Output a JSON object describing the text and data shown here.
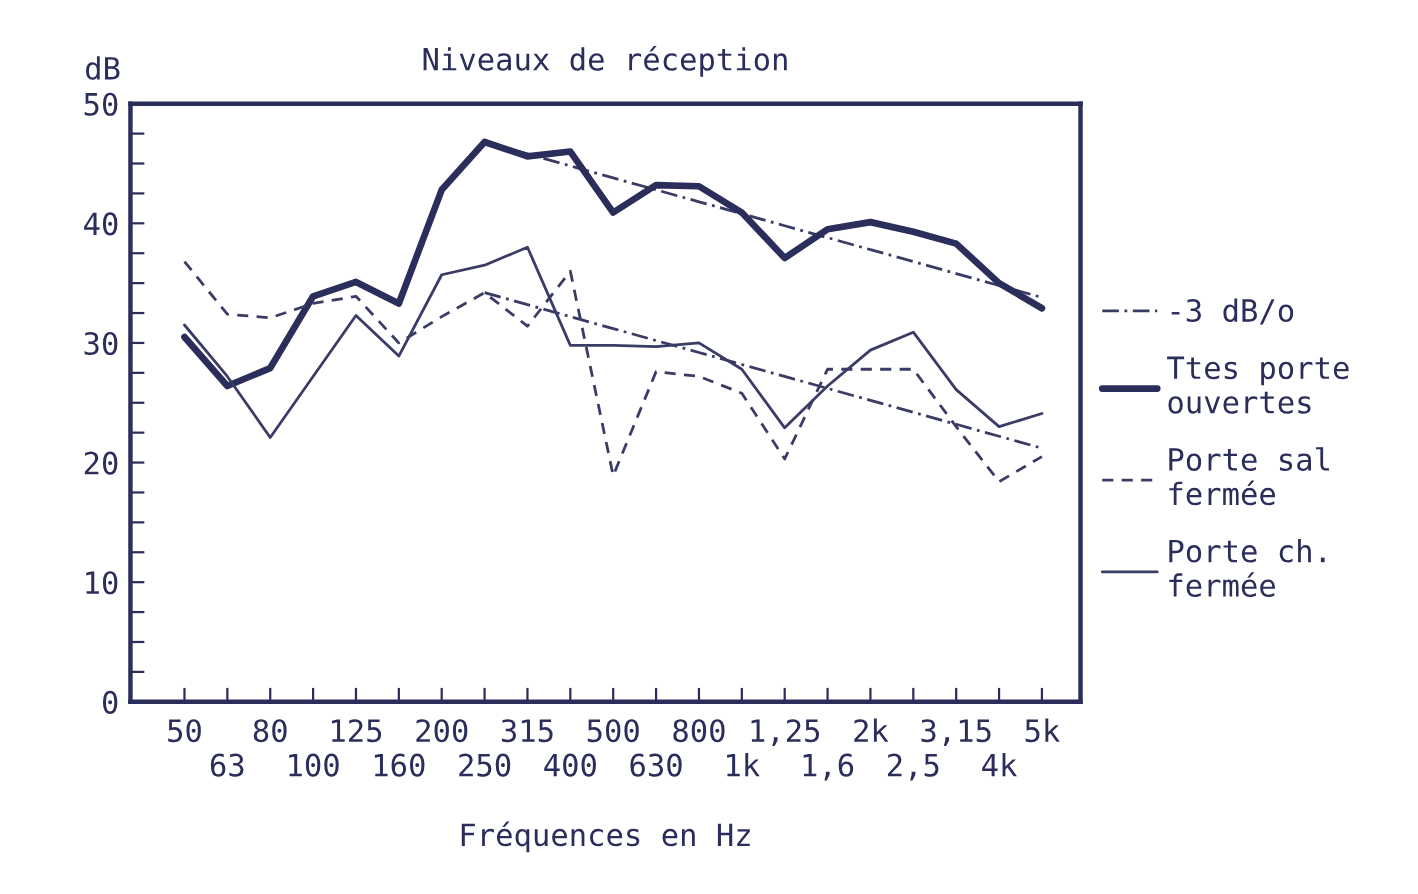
{
  "chart_data": {
    "type": "line",
    "title": "Niveaux de réception",
    "xlabel": "Fréquences en Hz",
    "ylabel": "dB",
    "categories": [
      "50",
      "63",
      "80",
      "100",
      "125",
      "160",
      "200",
      "250",
      "315",
      "400",
      "500",
      "630",
      "800",
      "1k",
      "1,25",
      "1,6",
      "2k",
      "2,5",
      "3,15",
      "4k",
      "5k"
    ],
    "series": [
      {
        "name": "-3 dB/o",
        "color": "#3a3c66",
        "line_style": "dashdot",
        "values": [
          null,
          null,
          null,
          null,
          null,
          null,
          null,
          46.8,
          45.8,
          44.8,
          43.8,
          42.8,
          41.8,
          40.8,
          39.8,
          38.8,
          37.8,
          36.8,
          35.8,
          34.8,
          33.8
        ]
      },
      {
        "color": "#3a3c66",
        "line_style": "dashdot",
        "values": [
          null,
          null,
          null,
          null,
          null,
          null,
          null,
          34.2,
          33.2,
          32.2,
          31.2,
          30.2,
          29.2,
          28.2,
          27.2,
          26.2,
          25.2,
          24.2,
          23.2,
          22.2,
          21.2
        ]
      },
      {
        "name": "Ttes porte\nouvertes",
        "color": "#2b2d5a",
        "line_style": "solid",
        "values": [
          30.5,
          26.4,
          27.9,
          33.9,
          35.1,
          33.3,
          42.8,
          46.8,
          45.6,
          46.0,
          40.9,
          43.2,
          43.1,
          40.9,
          37.1,
          39.5,
          40.1,
          39.3,
          38.3,
          35.0,
          32.9
        ]
      },
      {
        "name": "Porte sal\nfermée",
        "color": "#3a3c66",
        "line_style": "dashed",
        "values": [
          36.8,
          32.4,
          32.1,
          33.3,
          33.9,
          30.0,
          32.2,
          34.2,
          31.4,
          36.0,
          18.9,
          27.6,
          27.2,
          25.8,
          20.3,
          27.8,
          27.8,
          27.8,
          23.0,
          18.4,
          20.5
        ]
      },
      {
        "name": "Porte ch.\nfermée",
        "color": "#3a3c66",
        "line_style": "solid",
        "values": [
          31.5,
          27.2,
          22.1,
          27.2,
          32.3,
          28.9,
          35.7,
          36.5,
          38.0,
          29.8,
          29.8,
          29.7,
          30.0,
          27.8,
          22.9,
          26.4,
          29.4,
          30.9,
          26.1,
          23.0,
          24.1
        ]
      }
    ],
    "ylim": [
      0,
      50
    ],
    "yticks": [
      0,
      {
        "value": 2.5,
        "label": null
      },
      {
        "value": 5,
        "label": null
      },
      {
        "value": 7.5,
        "label": null
      },
      10,
      {
        "value": 12.5,
        "label": null
      },
      {
        "value": 15,
        "label": null
      },
      {
        "value": 17.5,
        "label": null
      },
      20,
      {
        "value": 22.5,
        "label": null
      },
      {
        "value": 25,
        "label": null
      },
      {
        "value": 27.5,
        "label": null
      },
      30,
      {
        "value": 32.5,
        "label": null
      },
      {
        "value": 35,
        "label": null
      },
      {
        "value": 37.5,
        "label": null
      },
      40,
      {
        "value": 42.5,
        "label": null
      },
      {
        "value": 45,
        "label": null
      },
      {
        "value": 47.5,
        "label": null
      },
      50
    ],
    "grid": false,
    "legend": "right",
    "marker": "none"
  }
}
